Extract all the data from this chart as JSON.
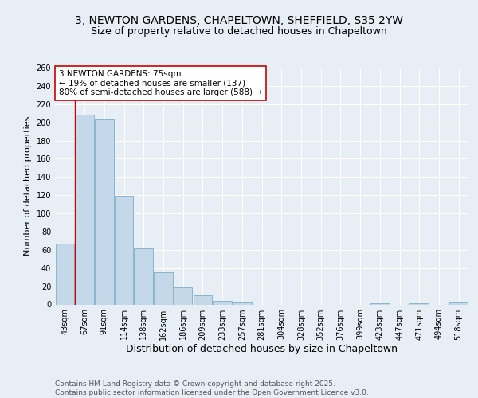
{
  "title1": "3, NEWTON GARDENS, CHAPELTOWN, SHEFFIELD, S35 2YW",
  "title2": "Size of property relative to detached houses in Chapeltown",
  "xlabel": "Distribution of detached houses by size in Chapeltown",
  "ylabel": "Number of detached properties",
  "bins": [
    "43sqm",
    "67sqm",
    "91sqm",
    "114sqm",
    "138sqm",
    "162sqm",
    "186sqm",
    "209sqm",
    "233sqm",
    "257sqm",
    "281sqm",
    "304sqm",
    "328sqm",
    "352sqm",
    "376sqm",
    "399sqm",
    "423sqm",
    "447sqm",
    "471sqm",
    "494sqm",
    "518sqm"
  ],
  "values": [
    67,
    208,
    203,
    119,
    62,
    35,
    19,
    10,
    4,
    2,
    0,
    0,
    0,
    0,
    0,
    0,
    1,
    0,
    1,
    0,
    2
  ],
  "bar_color": "#c5d8ea",
  "bar_edge_color": "#7aafc8",
  "vline_x_index": 1,
  "vline_color": "#cc0000",
  "annotation_text": "3 NEWTON GARDENS: 75sqm\n← 19% of detached houses are smaller (137)\n80% of semi-detached houses are larger (588) →",
  "annotation_box_color": "#ffffff",
  "annotation_box_edge": "#cc0000",
  "ylim": [
    0,
    260
  ],
  "yticks": [
    0,
    20,
    40,
    60,
    80,
    100,
    120,
    140,
    160,
    180,
    200,
    220,
    240,
    260
  ],
  "bg_color": "#e8eef5",
  "plot_bg_color": "#e8eef5",
  "footer": "Contains HM Land Registry data © Crown copyright and database right 2025.\nContains public sector information licensed under the Open Government Licence v3.0.",
  "title1_fontsize": 10,
  "title2_fontsize": 9,
  "xlabel_fontsize": 9,
  "ylabel_fontsize": 8,
  "tick_fontsize": 7,
  "annotation_fontsize": 7.5,
  "footer_fontsize": 6.5
}
